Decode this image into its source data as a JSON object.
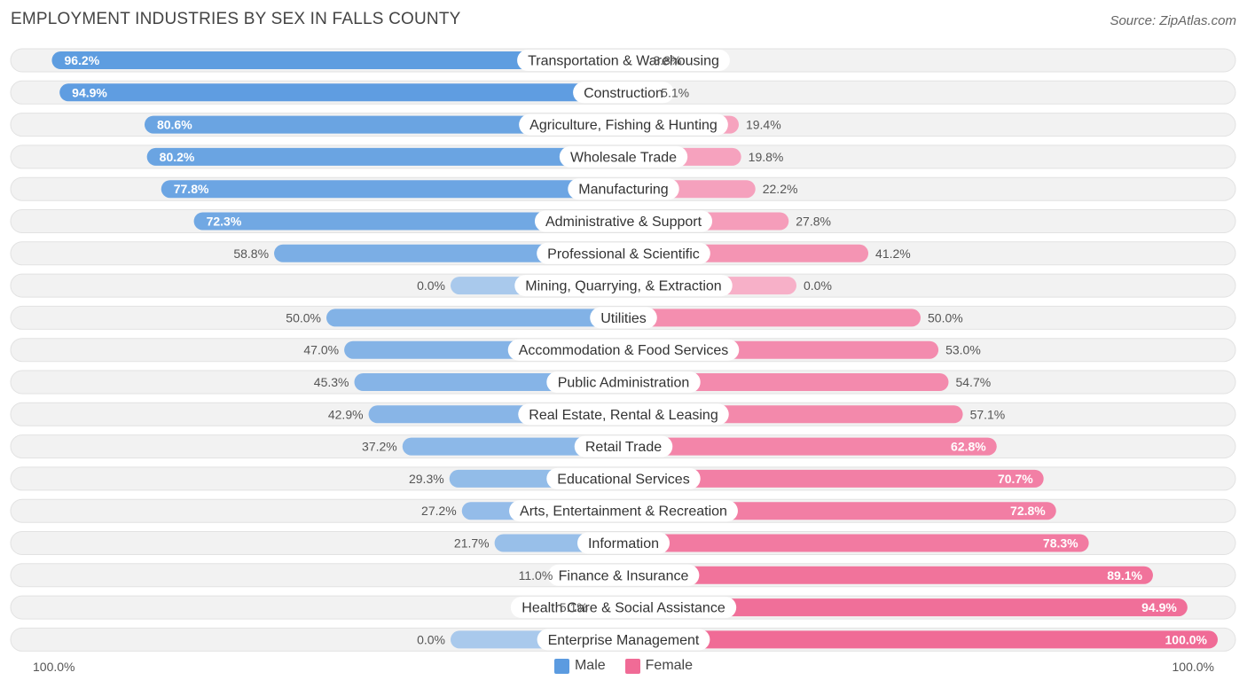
{
  "title": "EMPLOYMENT INDUSTRIES BY SEX IN FALLS COUNTY",
  "source": "Source: ZipAtlas.com",
  "colors": {
    "male_dark": "#5b9be0",
    "male_light": "#a9c9ec",
    "female_dark": "#f06b96",
    "female_light": "#f7b0c8",
    "row_bg": "#f2f2f2"
  },
  "legend": {
    "male": "Male",
    "female": "Female"
  },
  "axis": {
    "left": "100.0%",
    "right": "100.0%"
  },
  "chart_data": {
    "type": "bar",
    "orientation": "horizontal-diverging",
    "title": "EMPLOYMENT INDUSTRIES BY SEX IN FALLS COUNTY",
    "xlim": [
      -100,
      100
    ],
    "categories": [
      "Transportation & Warehousing",
      "Construction",
      "Agriculture, Fishing & Hunting",
      "Wholesale Trade",
      "Manufacturing",
      "Administrative & Support",
      "Professional & Scientific",
      "Mining, Quarrying, & Extraction",
      "Utilities",
      "Accommodation & Food Services",
      "Public Administration",
      "Real Estate, Rental & Leasing",
      "Retail Trade",
      "Educational Services",
      "Arts, Entertainment & Recreation",
      "Information",
      "Finance & Insurance",
      "Health Care & Social Assistance",
      "Enterprise Management"
    ],
    "series": [
      {
        "name": "Male",
        "values": [
          96.2,
          94.9,
          80.6,
          80.2,
          77.8,
          72.3,
          58.8,
          0.0,
          50.0,
          47.0,
          45.3,
          42.9,
          37.2,
          29.3,
          27.2,
          21.7,
          11.0,
          5.1,
          0.0
        ],
        "labels": [
          "96.2%",
          "94.9%",
          "80.6%",
          "80.2%",
          "77.8%",
          "72.3%",
          "58.8%",
          "0.0%",
          "50.0%",
          "47.0%",
          "45.3%",
          "42.9%",
          "37.2%",
          "29.3%",
          "27.2%",
          "21.7%",
          "11.0%",
          "5.1%",
          "0.0%"
        ]
      },
      {
        "name": "Female",
        "values": [
          3.8,
          5.1,
          19.4,
          19.8,
          22.2,
          27.8,
          41.2,
          0.0,
          50.0,
          53.0,
          54.7,
          57.1,
          62.8,
          70.7,
          72.8,
          78.3,
          89.1,
          94.9,
          100.0
        ],
        "labels": [
          "3.8%",
          "5.1%",
          "19.4%",
          "19.8%",
          "22.2%",
          "27.8%",
          "41.2%",
          "0.0%",
          "50.0%",
          "53.0%",
          "54.7%",
          "57.1%",
          "62.8%",
          "70.7%",
          "72.8%",
          "78.3%",
          "89.1%",
          "94.9%",
          "100.0%"
        ]
      }
    ]
  }
}
